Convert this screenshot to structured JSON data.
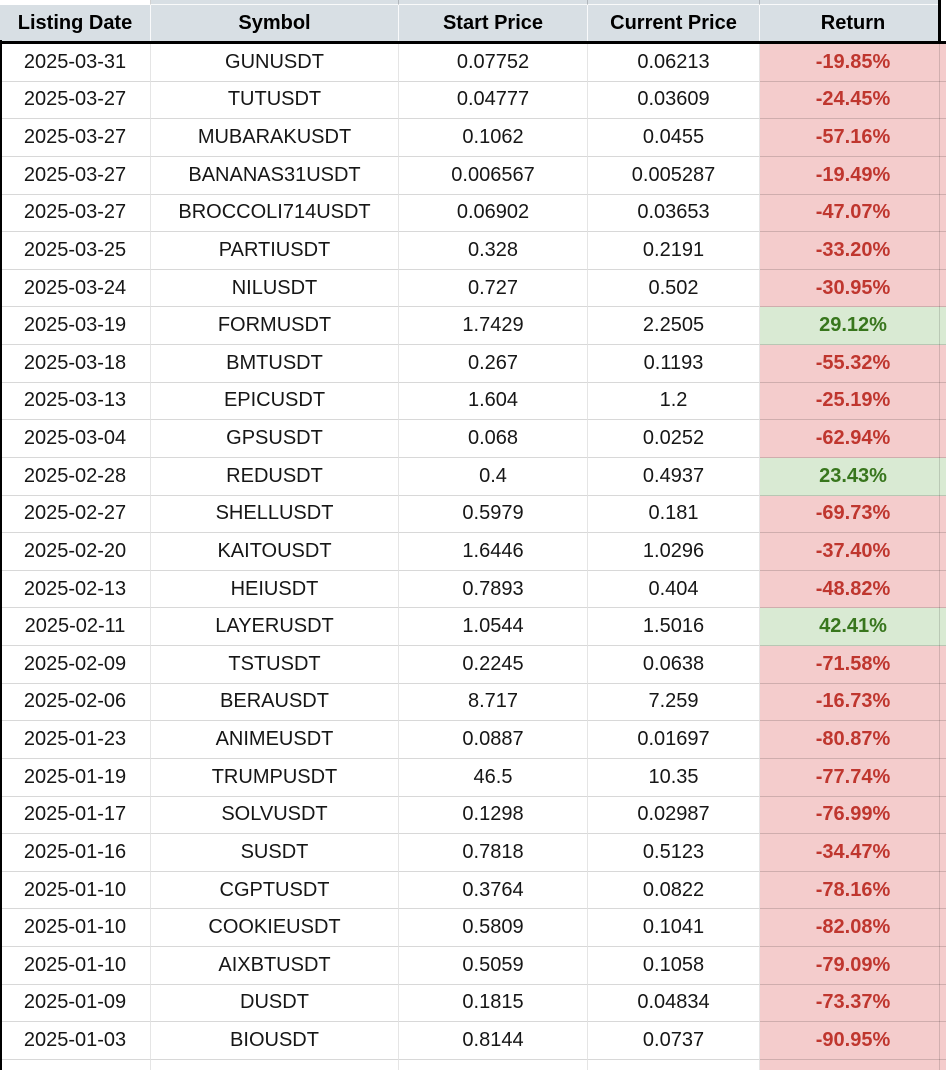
{
  "table": {
    "columns": [
      "Listing Date",
      "Symbol",
      "Start Price",
      "Current Price",
      "Return"
    ],
    "rows": [
      {
        "listing_date": "2025-03-31",
        "symbol": "GUNUSDT",
        "start_price": "0.07752",
        "current_price": "0.06213",
        "return": "-19.85%"
      },
      {
        "listing_date": "2025-03-27",
        "symbol": "TUTUSDT",
        "start_price": "0.04777",
        "current_price": "0.03609",
        "return": "-24.45%"
      },
      {
        "listing_date": "2025-03-27",
        "symbol": "MUBARAKUSDT",
        "start_price": "0.1062",
        "current_price": "0.0455",
        "return": "-57.16%"
      },
      {
        "listing_date": "2025-03-27",
        "symbol": "BANANAS31USDT",
        "start_price": "0.006567",
        "current_price": "0.005287",
        "return": "-19.49%"
      },
      {
        "listing_date": "2025-03-27",
        "symbol": "BROCCOLI714USDT",
        "start_price": "0.06902",
        "current_price": "0.03653",
        "return": "-47.07%"
      },
      {
        "listing_date": "2025-03-25",
        "symbol": "PARTIUSDT",
        "start_price": "0.328",
        "current_price": "0.2191",
        "return": "-33.20%"
      },
      {
        "listing_date": "2025-03-24",
        "symbol": "NILUSDT",
        "start_price": "0.727",
        "current_price": "0.502",
        "return": "-30.95%"
      },
      {
        "listing_date": "2025-03-19",
        "symbol": "FORMUSDT",
        "start_price": "1.7429",
        "current_price": "2.2505",
        "return": "29.12%"
      },
      {
        "listing_date": "2025-03-18",
        "symbol": "BMTUSDT",
        "start_price": "0.267",
        "current_price": "0.1193",
        "return": "-55.32%"
      },
      {
        "listing_date": "2025-03-13",
        "symbol": "EPICUSDT",
        "start_price": "1.604",
        "current_price": "1.2",
        "return": "-25.19%"
      },
      {
        "listing_date": "2025-03-04",
        "symbol": "GPSUSDT",
        "start_price": "0.068",
        "current_price": "0.0252",
        "return": "-62.94%"
      },
      {
        "listing_date": "2025-02-28",
        "symbol": "REDUSDT",
        "start_price": "0.4",
        "current_price": "0.4937",
        "return": "23.43%"
      },
      {
        "listing_date": "2025-02-27",
        "symbol": "SHELLUSDT",
        "start_price": "0.5979",
        "current_price": "0.181",
        "return": "-69.73%"
      },
      {
        "listing_date": "2025-02-20",
        "symbol": "KAITOUSDT",
        "start_price": "1.6446",
        "current_price": "1.0296",
        "return": "-37.40%"
      },
      {
        "listing_date": "2025-02-13",
        "symbol": "HEIUSDT",
        "start_price": "0.7893",
        "current_price": "0.404",
        "return": "-48.82%"
      },
      {
        "listing_date": "2025-02-11",
        "symbol": "LAYERUSDT",
        "start_price": "1.0544",
        "current_price": "1.5016",
        "return": "42.41%"
      },
      {
        "listing_date": "2025-02-09",
        "symbol": "TSTUSDT",
        "start_price": "0.2245",
        "current_price": "0.0638",
        "return": "-71.58%"
      },
      {
        "listing_date": "2025-02-06",
        "symbol": "BERAUSDT",
        "start_price": "8.717",
        "current_price": "7.259",
        "return": "-16.73%"
      },
      {
        "listing_date": "2025-01-23",
        "symbol": "ANIMEUSDT",
        "start_price": "0.0887",
        "current_price": "0.01697",
        "return": "-80.87%"
      },
      {
        "listing_date": "2025-01-19",
        "symbol": "TRUMPUSDT",
        "start_price": "46.5",
        "current_price": "10.35",
        "return": "-77.74%"
      },
      {
        "listing_date": "2025-01-17",
        "symbol": "SOLVUSDT",
        "start_price": "0.1298",
        "current_price": "0.02987",
        "return": "-76.99%"
      },
      {
        "listing_date": "2025-01-16",
        "symbol": "SUSDT",
        "start_price": "0.7818",
        "current_price": "0.5123",
        "return": "-34.47%"
      },
      {
        "listing_date": "2025-01-10",
        "symbol": "CGPTUSDT",
        "start_price": "0.3764",
        "current_price": "0.0822",
        "return": "-78.16%"
      },
      {
        "listing_date": "2025-01-10",
        "symbol": "COOKIEUSDT",
        "start_price": "0.5809",
        "current_price": "0.1041",
        "return": "-82.08%"
      },
      {
        "listing_date": "2025-01-10",
        "symbol": "AIXBTUSDT",
        "start_price": "0.5059",
        "current_price": "0.1058",
        "return": "-79.09%"
      },
      {
        "listing_date": "2025-01-09",
        "symbol": "DUSDT",
        "start_price": "0.1815",
        "current_price": "0.04834",
        "return": "-73.37%"
      },
      {
        "listing_date": "2025-01-03",
        "symbol": "BIOUSDT",
        "start_price": "0.8144",
        "current_price": "0.0737",
        "return": "-90.95%"
      }
    ]
  },
  "colors": {
    "header_bg": "#d8dfe4",
    "negative_bg": "#f4cccc",
    "negative_text": "#bf362e",
    "positive_bg": "#d9ead3",
    "positive_text": "#38761d",
    "border_black": "#000000"
  }
}
